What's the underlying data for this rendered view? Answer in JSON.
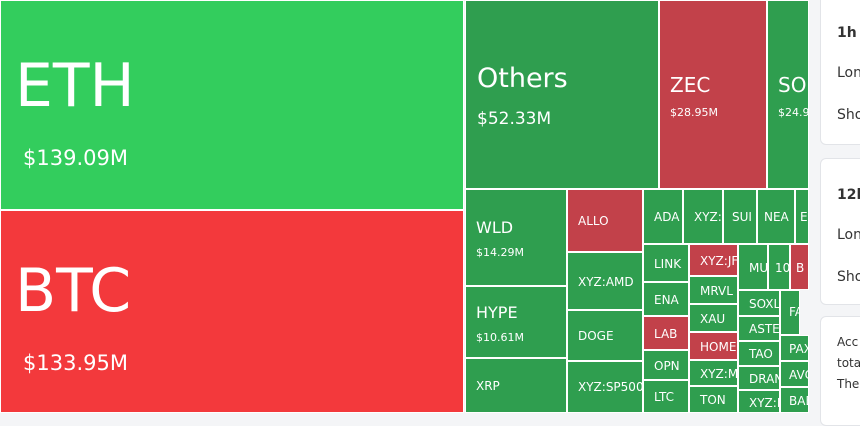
{
  "tiles": [
    {
      "label": "ETH",
      "value": "$139.09M"
    },
    {
      "label": "BTC",
      "value": "$133.95M"
    },
    {
      "label": "Others",
      "value": "$52.33M"
    },
    {
      "label": "ZEC",
      "value": "$28.95M"
    },
    {
      "label": "SO",
      "value": "$24.9"
    },
    {
      "label": "WLD",
      "value": "$14.29M"
    },
    {
      "label": "HYPE",
      "value": "$10.61M"
    },
    {
      "label": "XRP"
    },
    {
      "label": "ALLO"
    },
    {
      "label": "XYZ:AMD"
    },
    {
      "label": "DOGE"
    },
    {
      "label": "XYZ:SP500"
    },
    {
      "label": "ADA"
    },
    {
      "label": "XYZ:"
    },
    {
      "label": "SUI"
    },
    {
      "label": "NEA"
    },
    {
      "label": "E"
    },
    {
      "label": "LINK"
    },
    {
      "label": "XYZ:JF"
    },
    {
      "label": "MU"
    },
    {
      "label": "10"
    },
    {
      "label": "B"
    },
    {
      "label": "ENA"
    },
    {
      "label": "MRVL"
    },
    {
      "label": "XAU"
    },
    {
      "label": "LAB"
    },
    {
      "label": "HOME"
    },
    {
      "label": "OPN"
    },
    {
      "label": "XYZ:M"
    },
    {
      "label": "LTC"
    },
    {
      "label": "TON"
    },
    {
      "label": "SOXL"
    },
    {
      "label": "ASTE"
    },
    {
      "label": "TAO"
    },
    {
      "label": "DRAN"
    },
    {
      "label": "XYZ:N"
    },
    {
      "label": "FA"
    },
    {
      "label": "PAX"
    },
    {
      "label": "AVC"
    },
    {
      "label": "BAE"
    }
  ],
  "panel": {
    "cards": [
      {
        "title": "1h",
        "rows": [
          "Lon",
          "Sho"
        ]
      },
      {
        "title": "12h",
        "rows": [
          "Lon",
          "Sho"
        ]
      }
    ],
    "note": [
      "Acc",
      "tota",
      "The"
    ]
  }
}
